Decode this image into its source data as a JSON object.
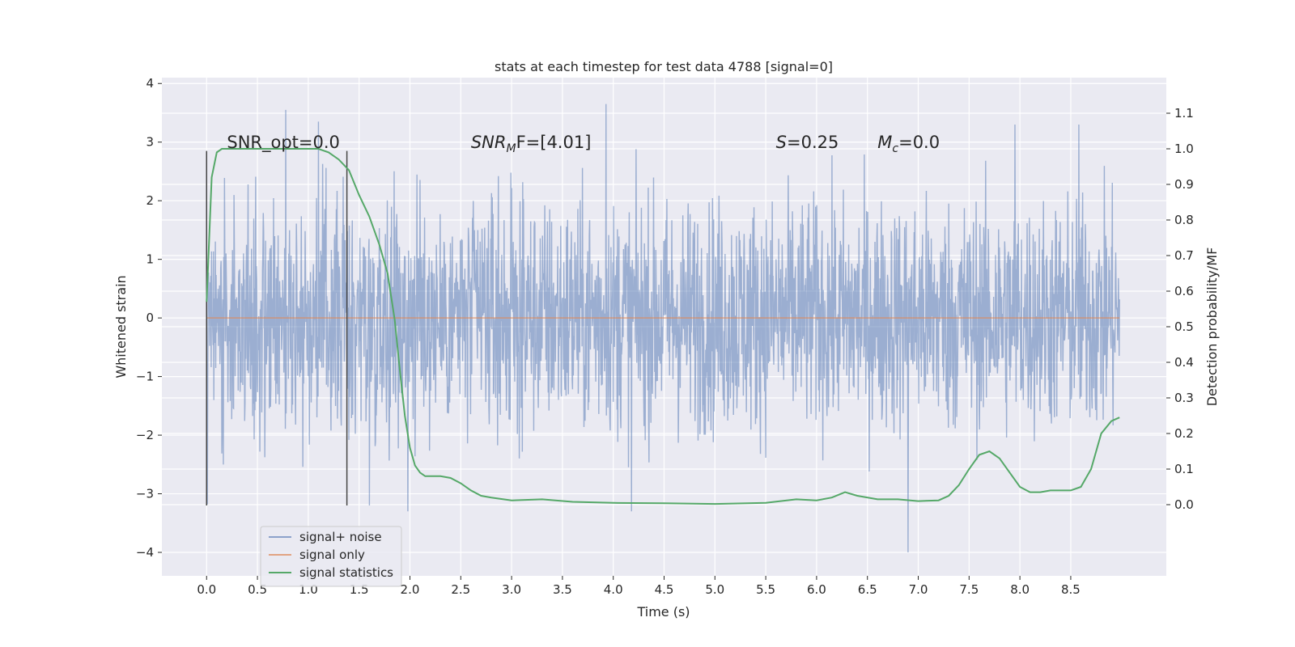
{
  "chart_data": {
    "type": "line",
    "title": "stats at each timestep for test data 4788 [signal=0]",
    "xlabel": "Time (s)",
    "ylabel": "Whitened strain",
    "ylabel_right": "Detection probability/MF",
    "xlim": [
      -0.44,
      9.44
    ],
    "ylim": [
      -4.4,
      4.1
    ],
    "ylim_right": [
      -0.2,
      1.2
    ],
    "x_ticks": [
      "0.0",
      "0.5",
      "1.0",
      "1.5",
      "2.0",
      "2.5",
      "3.0",
      "3.5",
      "4.0",
      "4.5",
      "5.0",
      "5.5",
      "6.0",
      "6.5",
      "7.0",
      "7.5",
      "8.0",
      "8.5"
    ],
    "y_ticks": [
      "4",
      "3",
      "2",
      "1",
      "0",
      "−1",
      "−2",
      "−3",
      "−4"
    ],
    "y_ticks_right": [
      "1.1",
      "1.0",
      "0.9",
      "0.8",
      "0.7",
      "0.6",
      "0.5",
      "0.4",
      "0.3",
      "0.2",
      "0.1",
      "0.0"
    ],
    "grid": true,
    "legend_position": "lower-left",
    "legend": [
      "signal+ noise",
      "signal only",
      "signal statistics"
    ],
    "colors": {
      "noise": "#4c72b0",
      "signal_only": "#dd8452",
      "statistics": "#55a868",
      "vline": "#444444",
      "background": "#eaeaf2"
    },
    "noise": {
      "x_range": [
        0.0,
        8.98
      ],
      "typical_envelope": [
        -1.0,
        1.05
      ],
      "peaks": [
        {
          "x": 0.78,
          "y": 3.55
        },
        {
          "x": 1.1,
          "y": 3.35
        },
        {
          "x": 3.93,
          "y": 3.65
        },
        {
          "x": 8.58,
          "y": 3.3
        },
        {
          "x": 7.95,
          "y": 3.3
        },
        {
          "x": 6.9,
          "y": -4.0
        },
        {
          "x": 1.98,
          "y": -3.3
        },
        {
          "x": 4.18,
          "y": -3.3
        },
        {
          "x": 1.6,
          "y": -3.2
        }
      ]
    },
    "signal_only": {
      "value": 0.0
    },
    "statistics": {
      "x": [
        0.0,
        0.05,
        0.1,
        0.15,
        0.2,
        0.3,
        0.5,
        0.8,
        1.0,
        1.1,
        1.2,
        1.3,
        1.4,
        1.5,
        1.6,
        1.7,
        1.78,
        1.85,
        1.9,
        1.95,
        2.0,
        2.05,
        2.1,
        2.15,
        2.2,
        2.3,
        2.4,
        2.5,
        2.6,
        2.7,
        2.8,
        3.0,
        3.3,
        3.6,
        4.0,
        4.5,
        5.0,
        5.5,
        5.8,
        6.0,
        6.15,
        6.28,
        6.4,
        6.6,
        6.8,
        7.0,
        7.2,
        7.3,
        7.4,
        7.5,
        7.6,
        7.7,
        7.8,
        7.9,
        8.0,
        8.1,
        8.2,
        8.3,
        8.4,
        8.5,
        8.6,
        8.7,
        8.8,
        8.9,
        8.98
      ],
      "y": [
        0.57,
        0.92,
        0.99,
        1.0,
        1.0,
        1.0,
        1.0,
        1.0,
        1.0,
        1.0,
        0.99,
        0.97,
        0.94,
        0.87,
        0.81,
        0.73,
        0.65,
        0.52,
        0.38,
        0.25,
        0.16,
        0.11,
        0.09,
        0.08,
        0.08,
        0.08,
        0.075,
        0.06,
        0.04,
        0.025,
        0.02,
        0.012,
        0.015,
        0.008,
        0.005,
        0.004,
        0.002,
        0.005,
        0.015,
        0.012,
        0.02,
        0.035,
        0.025,
        0.015,
        0.015,
        0.01,
        0.012,
        0.025,
        0.055,
        0.1,
        0.14,
        0.15,
        0.13,
        0.09,
        0.05,
        0.035,
        0.035,
        0.04,
        0.04,
        0.04,
        0.05,
        0.1,
        0.2,
        0.235,
        0.245
      ]
    },
    "vlines": [
      {
        "x": 0.0,
        "ymin": -3.2,
        "ymax": 2.85
      },
      {
        "x": 1.38,
        "ymin": -3.2,
        "ymax": 2.85
      }
    ]
  },
  "annotations": {
    "snr_opt": {
      "text": "SNR_opt=0.0",
      "x": 0.2,
      "y": 2.9
    },
    "snr_mf": {
      "base": "SNR",
      "sub": "M",
      "rest": "F=[4.01]",
      "x": 2.6,
      "y": 2.9
    },
    "s": {
      "base": "S",
      "rest": "=0.25",
      "x": 5.6,
      "y": 2.9
    },
    "mc": {
      "base": "M",
      "sub": "c",
      "rest": "=0.0",
      "x": 6.6,
      "y": 2.9
    }
  }
}
